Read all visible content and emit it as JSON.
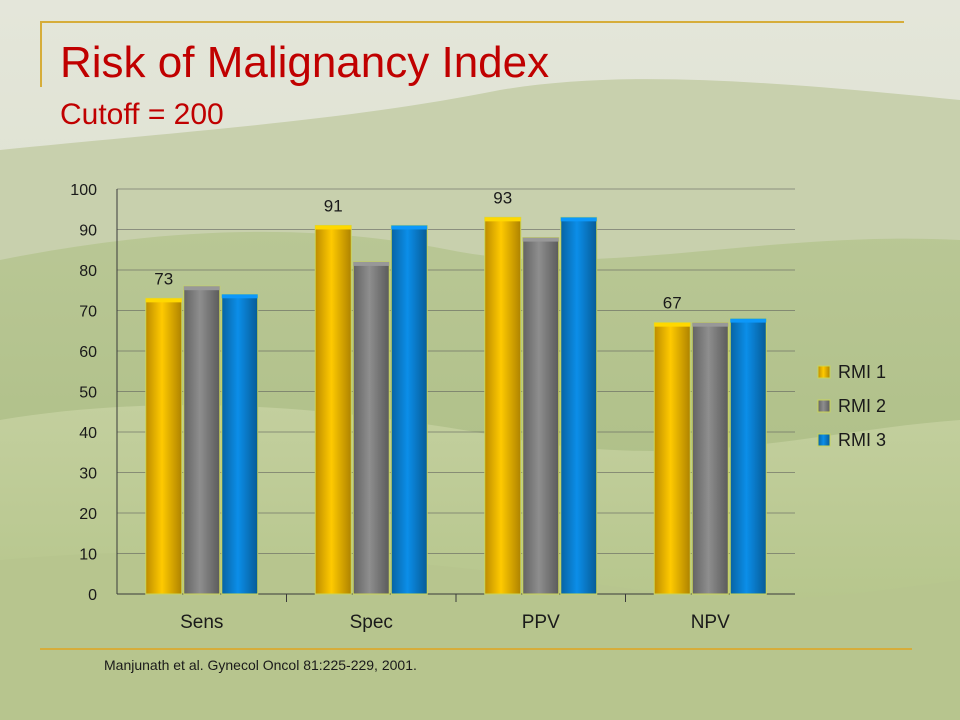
{
  "slide": {
    "title": "Risk of Malignancy Index",
    "subtitle": "Cutoff = 200",
    "citation": "Manjunath et al. Gynecol Oncol 81:225-229, 2001."
  },
  "colors": {
    "title": "#c00000",
    "rule": "#d6ad3a",
    "rmi1": "#f2b400",
    "rmi2": "#7f7f7f",
    "rmi3": "#0a7fd0"
  },
  "chart_data": {
    "type": "bar",
    "categories": [
      "Sens",
      "Spec",
      "PPV",
      "NPV"
    ],
    "series": [
      {
        "name": "RMI 1",
        "values": [
          73,
          91,
          93,
          67
        ],
        "color": "#f2b400"
      },
      {
        "name": "RMI 2",
        "values": [
          76,
          82,
          88,
          67
        ],
        "color": "#7f7f7f"
      },
      {
        "name": "RMI 3",
        "values": [
          74,
          91,
          93,
          68
        ],
        "color": "#0a7fd0"
      }
    ],
    "data_labels": [
      {
        "series": "RMI 1",
        "category": "Sens",
        "text": "73"
      },
      {
        "series": "RMI 1",
        "category": "Spec",
        "text": "91"
      },
      {
        "series": "RMI 1",
        "category": "PPV",
        "text": "93"
      },
      {
        "series": "RMI 1",
        "category": "NPV",
        "text": "67"
      }
    ],
    "ylim": [
      0,
      100
    ],
    "yticks": [
      0,
      10,
      20,
      30,
      40,
      50,
      60,
      70,
      80,
      90,
      100
    ],
    "xlabel": "",
    "ylabel": "",
    "grid": true,
    "legend_position": "right"
  }
}
